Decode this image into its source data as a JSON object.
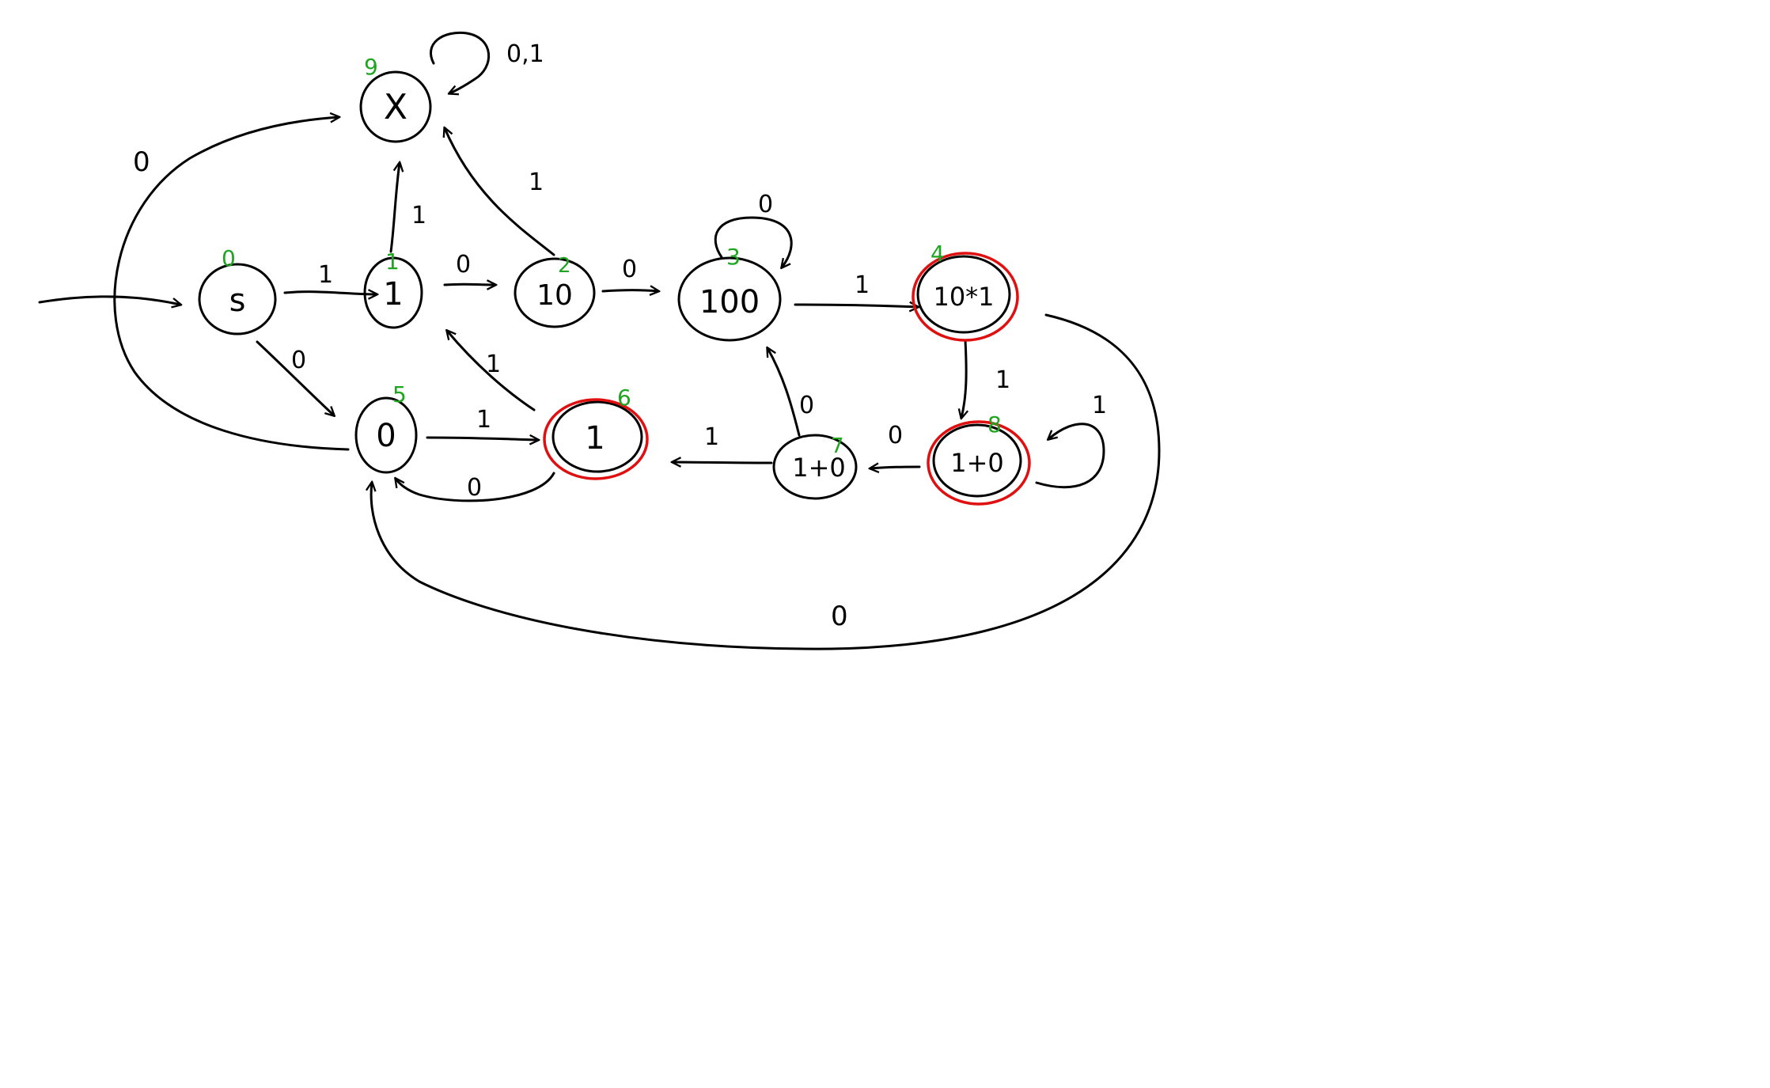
{
  "canvas": {
    "background": "#ffffff",
    "stroke_color": "#000000",
    "accept_color": "#e01010",
    "index_color": "#1fa51f"
  },
  "states": [
    {
      "id": "s",
      "label": "s",
      "index": "0",
      "accepting": false
    },
    {
      "id": "q1",
      "label": "1",
      "index": "1",
      "accepting": false
    },
    {
      "id": "q2",
      "label": "10",
      "index": "2",
      "accepting": false
    },
    {
      "id": "q3",
      "label": "100",
      "index": "3",
      "accepting": false
    },
    {
      "id": "q4",
      "label": "10*1",
      "index": "4",
      "accepting": true
    },
    {
      "id": "q5",
      "label": "0",
      "index": "5",
      "accepting": false
    },
    {
      "id": "q6",
      "label": "1",
      "index": "6",
      "accepting": true
    },
    {
      "id": "q7",
      "label": "1+0",
      "index": "7",
      "accepting": false
    },
    {
      "id": "q8",
      "label": "1+0",
      "index": "8",
      "accepting": true
    },
    {
      "id": "q9",
      "label": "X",
      "index": "9",
      "accepting": false
    }
  ],
  "edge_labels": {
    "s_q1": "1",
    "s_q5": "0",
    "s_q9": "0",
    "q1_q2": "0",
    "q1_q9": "1",
    "q2_q3": "0",
    "q2_q9": "1",
    "q3_loop": "0",
    "q3_q4": "1",
    "q4_q8": "1",
    "q4_q5": "0",
    "q5_q6": "1",
    "q6_q5": "0",
    "q6_q1": "1",
    "q7_q6": "1",
    "q7_q3": "0",
    "q8_q7": "0",
    "q8_loop": "1",
    "q9_loop": "0,1"
  }
}
